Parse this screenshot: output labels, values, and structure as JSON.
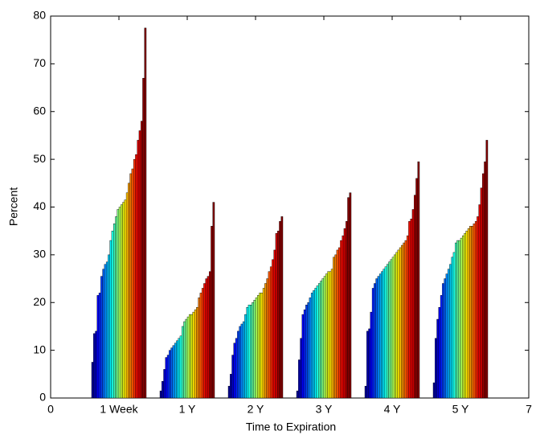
{
  "chart_data": {
    "type": "bar",
    "xlabel": "Time to Expiration",
    "ylabel": "Percent",
    "categories": [
      "1 Week",
      "1 Y",
      "2 Y",
      "3 Y",
      "4 Y",
      "5 Y"
    ],
    "xlim": [
      0,
      7
    ],
    "xticks": [
      0,
      {
        "value": 1,
        "label": "1 Week"
      },
      {
        "value": 2,
        "label": "1 Y"
      },
      {
        "value": 3,
        "label": "2 Y"
      },
      {
        "value": 4,
        "label": "3 Y"
      },
      {
        "value": 5,
        "label": "4 Y"
      },
      {
        "value": 6,
        "label": "5 Y"
      },
      7
    ],
    "ylim": [
      0,
      80
    ],
    "yticks": [
      0,
      10,
      20,
      30,
      40,
      50,
      60,
      70,
      80
    ],
    "series": [
      {
        "color": "#00008f",
        "values": [
          7.5,
          1.5,
          2.5,
          1.5,
          2.5,
          3.2
        ]
      },
      {
        "color": "#0000b2",
        "values": [
          13.5,
          3.5,
          5,
          8,
          14,
          12.5
        ]
      },
      {
        "color": "#0000d6",
        "values": [
          14,
          6,
          9,
          12.5,
          14.5,
          16.5
        ]
      },
      {
        "color": "#0000fa",
        "values": [
          21.5,
          8.5,
          11.5,
          17.5,
          18,
          19
        ]
      },
      {
        "color": "#001eff",
        "values": [
          22,
          9,
          12.5,
          18.5,
          23,
          21.5
        ]
      },
      {
        "color": "#0042ff",
        "values": [
          25.5,
          10,
          14,
          19.5,
          24,
          24
        ]
      },
      {
        "color": "#0066ff",
        "values": [
          27,
          10.5,
          15,
          20,
          25,
          25
        ]
      },
      {
        "color": "#008aff",
        "values": [
          28,
          11,
          15.5,
          21,
          25.5,
          26
        ]
      },
      {
        "color": "#00adff",
        "values": [
          28.5,
          11.5,
          16,
          22,
          26,
          27
        ]
      },
      {
        "color": "#00d1ff",
        "values": [
          30,
          12,
          17.5,
          22.5,
          26.5,
          28
        ]
      },
      {
        "color": "#00f5ff",
        "values": [
          33,
          12.5,
          19,
          23,
          27,
          29.5
        ]
      },
      {
        "color": "#19ffe6",
        "values": [
          35,
          13,
          19.5,
          23.5,
          27.5,
          30.5
        ]
      },
      {
        "color": "#3dffc2",
        "values": [
          36.5,
          15,
          19.5,
          24,
          28,
          32.5
        ]
      },
      {
        "color": "#61ff9e",
        "values": [
          38,
          16,
          20,
          24.5,
          28.5,
          33
        ]
      },
      {
        "color": "#85ff7a",
        "values": [
          39.5,
          16.5,
          20.5,
          25,
          29,
          33
        ]
      },
      {
        "color": "#a8ff57",
        "values": [
          40,
          17,
          21,
          25.5,
          29.5,
          33.5
        ]
      },
      {
        "color": "#ccff33",
        "values": [
          40.5,
          17.5,
          21.5,
          26,
          30,
          34
        ]
      },
      {
        "color": "#f0ff0f",
        "values": [
          41,
          17.5,
          22,
          26.5,
          30.5,
          34.5
        ]
      },
      {
        "color": "#ffe600",
        "values": [
          41.5,
          18,
          22,
          26.5,
          31,
          35
        ]
      },
      {
        "color": "#ffc200",
        "values": [
          43,
          18.5,
          23,
          27,
          31.5,
          35.5
        ]
      },
      {
        "color": "#ff9e00",
        "values": [
          45,
          19,
          24,
          29.5,
          32,
          36
        ]
      },
      {
        "color": "#ff7a00",
        "values": [
          47,
          21,
          25,
          30,
          32.5,
          36
        ]
      },
      {
        "color": "#ff5700",
        "values": [
          48,
          22,
          26.5,
          31,
          33,
          36.5
        ]
      },
      {
        "color": "#ff3300",
        "values": [
          50,
          23,
          27.5,
          31.5,
          34,
          37
        ]
      },
      {
        "color": "#ff0f00",
        "values": [
          51,
          24,
          29,
          33,
          37,
          38
        ]
      },
      {
        "color": "#eb0000",
        "values": [
          54,
          25,
          31,
          34,
          37.5,
          40.5
        ]
      },
      {
        "color": "#c70000",
        "values": [
          56,
          25.5,
          34.5,
          35.5,
          39.5,
          44
        ]
      },
      {
        "color": "#a30000",
        "values": [
          58,
          26.5,
          35,
          37,
          42.5,
          47
        ]
      },
      {
        "color": "#8f0000",
        "values": [
          67,
          36,
          37,
          42,
          46,
          49.5
        ]
      },
      {
        "color": "#800000",
        "values": [
          77.5,
          41,
          38,
          43,
          49.5,
          54
        ]
      }
    ]
  }
}
